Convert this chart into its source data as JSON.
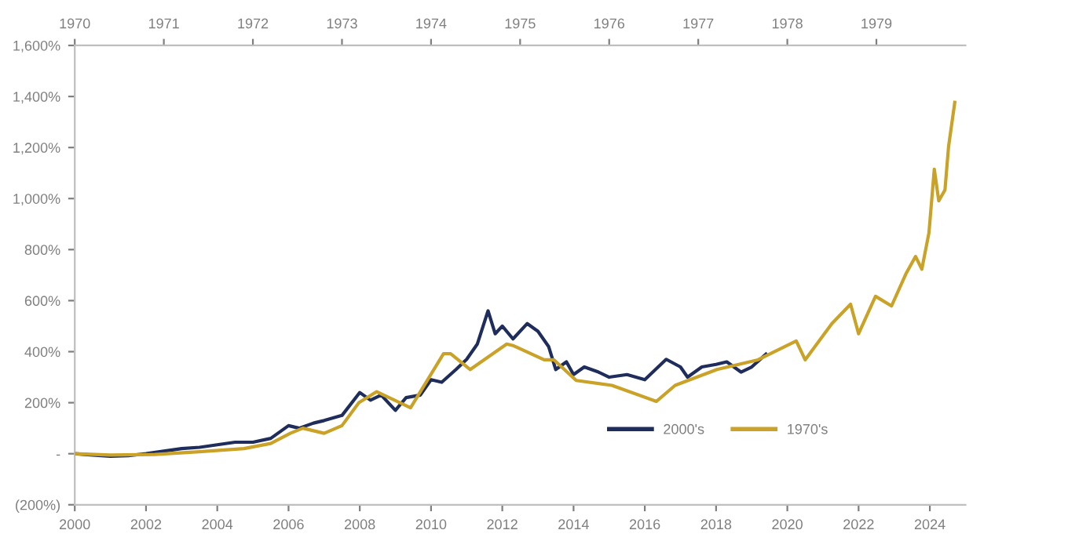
{
  "chart_data": {
    "type": "line",
    "xlim": [
      2000,
      2025
    ],
    "xticks": [
      2000,
      2002,
      2004,
      2006,
      2008,
      2010,
      2012,
      2014,
      2016,
      2018,
      2020,
      2022,
      2024
    ],
    "x2lim": [
      1970,
      1980
    ],
    "x2ticks": [
      1970,
      1971,
      1972,
      1973,
      1974,
      1975,
      1976,
      1977,
      1978,
      1979
    ],
    "ylim": [
      -200,
      1600
    ],
    "yticks": [
      {
        "value": -200,
        "label": "(200%)"
      },
      {
        "value": 0,
        "label": "-"
      },
      {
        "value": 200,
        "label": "200%"
      },
      {
        "value": 400,
        "label": "400%"
      },
      {
        "value": 600,
        "label": "600%"
      },
      {
        "value": 800,
        "label": "800%"
      },
      {
        "value": 1000,
        "label": "1,000%"
      },
      {
        "value": 1200,
        "label": "1,200%"
      },
      {
        "value": 1400,
        "label": "1,400%"
      },
      {
        "value": 1600,
        "label": "1,600%"
      }
    ],
    "grid": false,
    "legend": "lower right",
    "line_style": "solid",
    "series": [
      {
        "name": "2000's",
        "color": "#1f2d5c",
        "x": [
          2000.0,
          2000.5,
          2001.0,
          2001.5,
          2002.0,
          2002.5,
          2003.0,
          2003.5,
          2004.0,
          2004.5,
          2005.0,
          2005.5,
          2006.0,
          2006.3,
          2006.7,
          2007.0,
          2007.5,
          2008.0,
          2008.3,
          2008.6,
          2009.0,
          2009.3,
          2009.7,
          2010.0,
          2010.3,
          2010.7,
          2011.0,
          2011.3,
          2011.6,
          2011.8,
          2012.0,
          2012.3,
          2012.7,
          2013.0,
          2013.3,
          2013.5,
          2013.8,
          2014.0,
          2014.3,
          2014.7,
          2015.0,
          2015.5,
          2016.0,
          2016.3,
          2016.6,
          2017.0,
          2017.2,
          2017.6,
          2018.0,
          2018.3,
          2018.7,
          2019.0,
          2019.4
        ],
        "values": [
          0,
          -5,
          -10,
          -8,
          0,
          10,
          20,
          25,
          35,
          45,
          45,
          60,
          110,
          100,
          120,
          130,
          150,
          240,
          210,
          230,
          170,
          220,
          230,
          290,
          280,
          330,
          370,
          430,
          560,
          470,
          500,
          450,
          510,
          480,
          420,
          330,
          360,
          310,
          340,
          320,
          300,
          310,
          290,
          330,
          370,
          340,
          300,
          340,
          350,
          360,
          320,
          340,
          390
        ]
      },
      {
        "name": "1970's",
        "color": "#c9a227",
        "axis": "x2",
        "x": [
          1970.0,
          1970.4,
          1970.9,
          1971.4,
          1971.9,
          1972.2,
          1972.42,
          1972.56,
          1972.8,
          1973.0,
          1973.19,
          1973.39,
          1973.77,
          1974.14,
          1974.22,
          1974.44,
          1974.85,
          1974.92,
          1975.27,
          1975.38,
          1975.63,
          1976.03,
          1976.53,
          1976.74,
          1977.21,
          1977.67,
          1978.1,
          1978.2,
          1978.5,
          1978.71,
          1978.8,
          1978.99,
          1979.17,
          1979.33,
          1979.44,
          1979.51,
          1979.59,
          1979.65,
          1979.7,
          1979.77,
          1979.81,
          1979.88
        ],
        "values": [
          0,
          -5,
          -3,
          8,
          20,
          40,
          80,
          100,
          80,
          110,
          200,
          243,
          180,
          392,
          392,
          330,
          430,
          424,
          368,
          368,
          287,
          268,
          205,
          268,
          330,
          368,
          442,
          368,
          510,
          586,
          470,
          617,
          579,
          704,
          773,
          723,
          866,
          1115,
          991,
          1034,
          1203,
          1377
        ]
      }
    ]
  }
}
